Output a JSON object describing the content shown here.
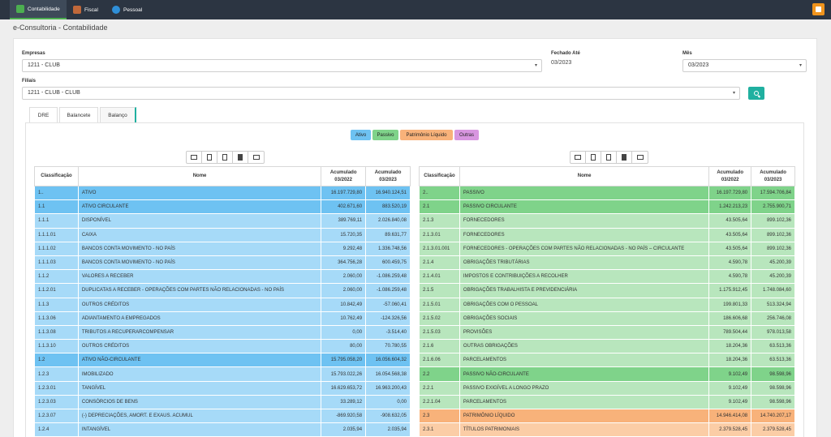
{
  "nav": {
    "items": [
      {
        "label": "Contabilidade",
        "icon": "accounting-icon",
        "color": "#4caf50"
      },
      {
        "label": "Fiscal",
        "icon": "fiscal-icon",
        "color": "#c0683a"
      },
      {
        "label": "Pessoal",
        "icon": "user-icon",
        "color": "#2f8fd8"
      }
    ]
  },
  "page": {
    "title": "e-Consultoria - Contabilidade"
  },
  "filters": {
    "empresas_label": "Empresas",
    "empresas_value": "1211 - CLUB",
    "fechado_label": "Fechado Até",
    "fechado_value": "03/2023",
    "mes_label": "Mês",
    "mes_value": "03/2023",
    "filiais_label": "Filiais",
    "filiais_value": "1211 - CLUB - CLUB"
  },
  "tabs": [
    "DRE",
    "Balancete",
    "Balanço"
  ],
  "legend": [
    {
      "label": "Ativo",
      "color": "#6ec2f2"
    },
    {
      "label": "Passivo",
      "color": "#7fd38a"
    },
    {
      "label": "Patrimônio Líquido",
      "color": "#f8b27a"
    },
    {
      "label": "Outras",
      "color": "#d896e0"
    }
  ],
  "colors": {
    "ativo_dark": "#6ec2f2",
    "ativo_light": "#a6daf8",
    "passivo_dark": "#7fd38a",
    "passivo_light": "#b8e6bd",
    "pl_dark": "#f8b27a",
    "pl_light": "#fbcda6"
  },
  "table_headers": {
    "classificacao": "Classificação",
    "nome": "Nome",
    "acum1_line1": "Acumulado",
    "acum1_line2": "03/2022",
    "acum2_line1": "Acumulado",
    "acum2_line2": "03/2023"
  },
  "ativo_rows": [
    {
      "cls": "1..",
      "nome": "ATIVO",
      "a": "16.197.729,80",
      "b": "16.940.124,51",
      "tone": "dark"
    },
    {
      "cls": "1.1",
      "nome": "ATIVO CIRCULANTE",
      "a": "402.671,60",
      "b": "883.520,19",
      "tone": "dark"
    },
    {
      "cls": "1.1.1",
      "nome": "DISPONÍVEL",
      "a": "389.769,11",
      "b": "2.026.840,08",
      "tone": "light"
    },
    {
      "cls": "1.1.1.01",
      "nome": "CAIXA",
      "a": "15.720,35",
      "b": "89.631,77",
      "tone": "light"
    },
    {
      "cls": "1.1.1.02",
      "nome": "BANCOS CONTA MOVIMENTO - NO PAÍS",
      "a": "9.292,48",
      "b": "1.336.748,56",
      "tone": "light"
    },
    {
      "cls": "1.1.1.03",
      "nome": "BANCOS CONTA MOVIMENTO - NO PAÍS",
      "a": "364.756,28",
      "b": "600.459,75",
      "tone": "light"
    },
    {
      "cls": "1.1.2",
      "nome": "VALORES A RECEBER",
      "a": "2.060,00",
      "b": "-1.086.259,48",
      "tone": "light"
    },
    {
      "cls": "1.1.2.01",
      "nome": "DUPLICATAS A RECEBER - OPERAÇÕES COM PARTES NÃO RELACIONADAS - NO PAÍS",
      "a": "2.060,00",
      "b": "-1.086.259,48",
      "tone": "light"
    },
    {
      "cls": "1.1.3",
      "nome": "OUTROS CRÉDITOS",
      "a": "10.842,49",
      "b": "-57.060,41",
      "tone": "light"
    },
    {
      "cls": "1.1.3.06",
      "nome": "ADIANTAMENTO A EMPREGADOS",
      "a": "10.762,49",
      "b": "-124.326,56",
      "tone": "light"
    },
    {
      "cls": "1.1.3.08",
      "nome": "TRIBUTOS A RECUPERARCOMPENSAR",
      "a": "0,00",
      "b": "-3.514,40",
      "tone": "light"
    },
    {
      "cls": "1.1.3.10",
      "nome": "OUTROS CRÉDITOS",
      "a": "80,00",
      "b": "70.780,55",
      "tone": "light"
    },
    {
      "cls": "1.2",
      "nome": "ATIVO NÃO-CIRCULANTE",
      "a": "15.795.058,20",
      "b": "16.056.604,32",
      "tone": "dark"
    },
    {
      "cls": "1.2.3",
      "nome": "IMOBILIZADO",
      "a": "15.793.022,26",
      "b": "16.054.568,38",
      "tone": "light"
    },
    {
      "cls": "1.2.3.01",
      "nome": "TANGÍVEL",
      "a": "16.629.653,72",
      "b": "16.963.200,43",
      "tone": "light"
    },
    {
      "cls": "1.2.3.03",
      "nome": "CONSÓRCIOS DE BENS",
      "a": "33.289,12",
      "b": "0,00",
      "tone": "light"
    },
    {
      "cls": "1.2.3.07",
      "nome": "(-) DEPRECIAÇÕES, AMORT. E EXAUS. ACUMUL",
      "a": "-869.920,58",
      "b": "-908.632,05",
      "tone": "light"
    },
    {
      "cls": "1.2.4",
      "nome": "INTANGÍVEL",
      "a": "2.035,94",
      "b": "2.035,94",
      "tone": "light"
    }
  ],
  "passivo_rows": [
    {
      "cls": "2..",
      "nome": "PASSIVO",
      "a": "16.197.729,80",
      "b": "17.594.706,84",
      "tone": "pdark"
    },
    {
      "cls": "2.1",
      "nome": "PASSIVO CIRCULANTE",
      "a": "1.242.213,23",
      "b": "2.755.900,71",
      "tone": "pdark"
    },
    {
      "cls": "2.1.3",
      "nome": "FORNECEDORES",
      "a": "43.505,64",
      "b": "899.102,36",
      "tone": "plight"
    },
    {
      "cls": "2.1.3.01",
      "nome": "FORNECEDORES",
      "a": "43.505,64",
      "b": "899.102,36",
      "tone": "plight"
    },
    {
      "cls": "2.1.3.01.001",
      "nome": "FORNECEDORES - OPERAÇÕES COM PARTES NÃO RELACIONADAS - NO PAÍS – CIRCULANTE",
      "a": "43.505,64",
      "b": "899.102,36",
      "tone": "plight"
    },
    {
      "cls": "2.1.4",
      "nome": "OBRIGAÇÕES TRIBUTÁRIAS",
      "a": "4.590,78",
      "b": "45.200,39",
      "tone": "plight"
    },
    {
      "cls": "2.1.4.01",
      "nome": "IMPOSTOS E CONTRIBUIÇÕES A RECOLHER",
      "a": "4.590,78",
      "b": "45.200,39",
      "tone": "plight"
    },
    {
      "cls": "2.1.5",
      "nome": "OBRIGAÇÕES TRABALHISTA E PREVIDENCIÁRIA",
      "a": "1.175.912,45",
      "b": "1.748.084,60",
      "tone": "plight"
    },
    {
      "cls": "2.1.5.01",
      "nome": "OBRIGAÇÕES COM O PESSOAL",
      "a": "199.801,33",
      "b": "513.324,94",
      "tone": "plight"
    },
    {
      "cls": "2.1.5.02",
      "nome": "OBRIGAÇÕES SOCIAIS",
      "a": "186.606,68",
      "b": "256.746,08",
      "tone": "plight"
    },
    {
      "cls": "2.1.5.03",
      "nome": "PROVISÕES",
      "a": "789.504,44",
      "b": "978.013,58",
      "tone": "plight"
    },
    {
      "cls": "2.1.6",
      "nome": "OUTRAS OBRIGAÇÕES",
      "a": "18.204,36",
      "b": "63.513,36",
      "tone": "plight"
    },
    {
      "cls": "2.1.6.06",
      "nome": "PARCELAMENTOS",
      "a": "18.204,36",
      "b": "63.513,36",
      "tone": "plight"
    },
    {
      "cls": "2.2",
      "nome": "PASSIVO NÃO-CIRCULANTE",
      "a": "9.102,49",
      "b": "98.598,96",
      "tone": "pdark"
    },
    {
      "cls": "2.2.1",
      "nome": "PASSIVO EXIGÍVEL A LONGO PRAZO",
      "a": "9.102,49",
      "b": "98.598,96",
      "tone": "plight"
    },
    {
      "cls": "2.2.1.04",
      "nome": "PARCELAMENTOS",
      "a": "9.102,49",
      "b": "98.598,96",
      "tone": "plight"
    },
    {
      "cls": "2.3",
      "nome": "PATRIMÔNIO LÍQUIDO",
      "a": "14.946.414,08",
      "b": "14.740.207,17",
      "tone": "odark"
    },
    {
      "cls": "2.3.1",
      "nome": "TÍTULOS PATRIMONIAIS",
      "a": "2.379.528,45",
      "b": "2.379.528,45",
      "tone": "olight"
    }
  ],
  "toolbar_icons": [
    "table-icon",
    "copy-icon",
    "csv-icon",
    "pdf-icon",
    "print-icon"
  ]
}
